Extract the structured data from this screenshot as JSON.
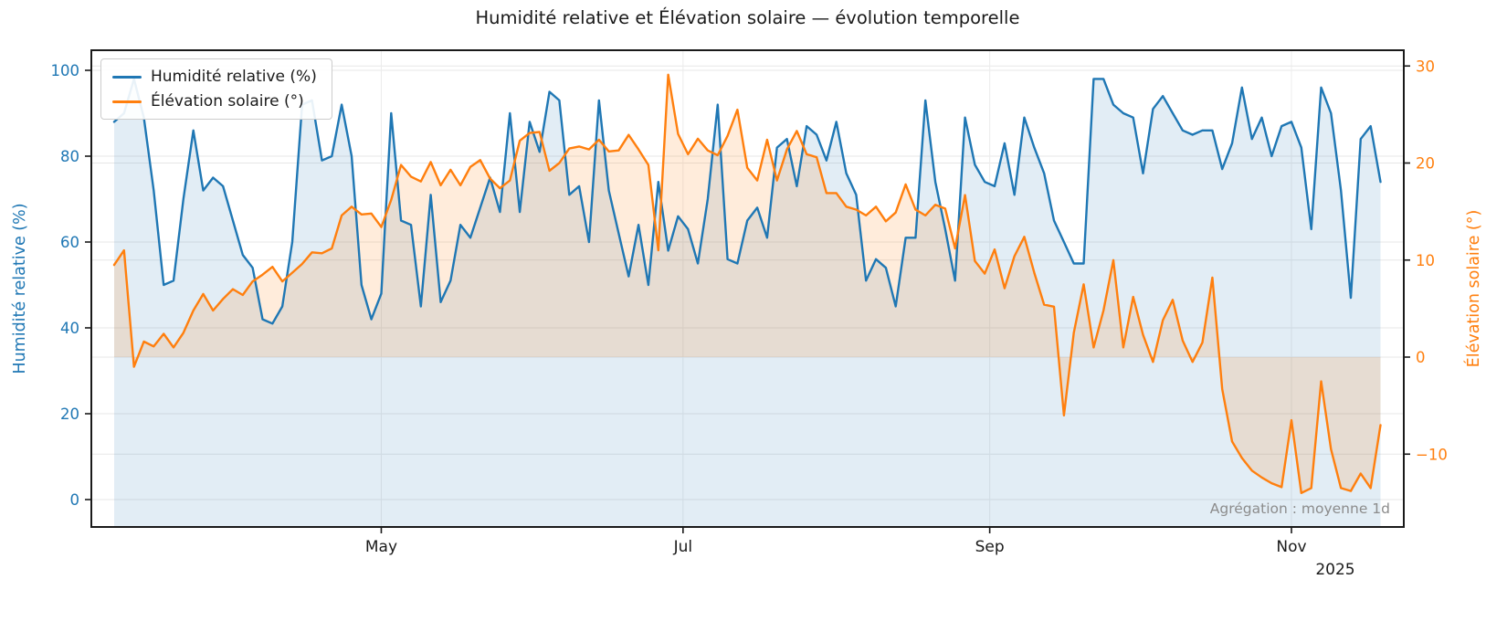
{
  "title": "Humidité relative et Élévation solaire — évolution temporelle",
  "annotation": "Agrégation : moyenne 1d",
  "colors": {
    "humidity": "#1f77b4",
    "elevation": "#ff7f0e",
    "grid": "#e7e7e7",
    "spine": "#1a1a1a",
    "annotation": "#8c8c8c"
  },
  "legend": {
    "items": [
      {
        "label": "Humidité relative (%)",
        "color": "#1f77b4"
      },
      {
        "label": "Élévation solaire (°)",
        "color": "#ff7f0e"
      }
    ]
  },
  "left_axis": {
    "label": "Humidité relative (%)",
    "color": "#1f77b4",
    "ticks": [
      0,
      20,
      40,
      60,
      80,
      100
    ]
  },
  "right_axis": {
    "label": "Élévation solaire (°)",
    "color": "#ff7f0e",
    "ticks": [
      -10,
      0,
      10,
      20,
      30
    ]
  },
  "x_axis": {
    "year_label": "2025",
    "ticks": [
      {
        "label": "May",
        "date": "2025-05-01"
      },
      {
        "label": "Jul",
        "date": "2025-07-01"
      },
      {
        "label": "Sep",
        "date": "2025-09-01"
      },
      {
        "label": "Nov",
        "date": "2025-11-01"
      }
    ]
  },
  "chart_data": {
    "type": "line",
    "title": "Humidité relative et Élévation solaire — évolution temporelle",
    "aggregation_note": "Agrégation : moyenne 1d",
    "grid": true,
    "legend_position": "upper left",
    "left_ylim": [
      -6.4,
      104.7
    ],
    "right_ylim": [
      -17.6,
      31.6
    ],
    "x_range": [
      "2025-03-08",
      "2025-11-19"
    ],
    "x": [
      "2025-03-08",
      "2025-03-10",
      "2025-03-12",
      "2025-03-14",
      "2025-03-16",
      "2025-03-18",
      "2025-03-20",
      "2025-03-22",
      "2025-03-24",
      "2025-03-26",
      "2025-03-28",
      "2025-03-30",
      "2025-04-01",
      "2025-04-03",
      "2025-04-05",
      "2025-04-07",
      "2025-04-09",
      "2025-04-11",
      "2025-04-13",
      "2025-04-15",
      "2025-04-17",
      "2025-04-19",
      "2025-04-21",
      "2025-04-23",
      "2025-04-25",
      "2025-04-27",
      "2025-04-29",
      "2025-05-01",
      "2025-05-03",
      "2025-05-05",
      "2025-05-07",
      "2025-05-09",
      "2025-05-11",
      "2025-05-13",
      "2025-05-15",
      "2025-05-17",
      "2025-05-19",
      "2025-05-21",
      "2025-05-23",
      "2025-05-25",
      "2025-05-27",
      "2025-05-29",
      "2025-05-31",
      "2025-06-02",
      "2025-06-04",
      "2025-06-06",
      "2025-06-08",
      "2025-06-10",
      "2025-06-12",
      "2025-06-14",
      "2025-06-16",
      "2025-06-18",
      "2025-06-20",
      "2025-06-22",
      "2025-06-24",
      "2025-06-26",
      "2025-06-28",
      "2025-06-30",
      "2025-07-02",
      "2025-07-04",
      "2025-07-06",
      "2025-07-08",
      "2025-07-10",
      "2025-07-12",
      "2025-07-14",
      "2025-07-16",
      "2025-07-18",
      "2025-07-20",
      "2025-07-22",
      "2025-07-24",
      "2025-07-26",
      "2025-07-28",
      "2025-07-30",
      "2025-08-01",
      "2025-08-03",
      "2025-08-05",
      "2025-08-07",
      "2025-08-09",
      "2025-08-11",
      "2025-08-13",
      "2025-08-15",
      "2025-08-17",
      "2025-08-19",
      "2025-08-21",
      "2025-08-23",
      "2025-08-25",
      "2025-08-27",
      "2025-08-29",
      "2025-08-31",
      "2025-09-02",
      "2025-09-04",
      "2025-09-06",
      "2025-09-08",
      "2025-09-10",
      "2025-09-12",
      "2025-09-14",
      "2025-09-16",
      "2025-09-18",
      "2025-09-20",
      "2025-09-22",
      "2025-09-24",
      "2025-09-26",
      "2025-09-28",
      "2025-09-30",
      "2025-10-02",
      "2025-10-04",
      "2025-10-06",
      "2025-10-08",
      "2025-10-10",
      "2025-10-12",
      "2025-10-14",
      "2025-10-16",
      "2025-10-18",
      "2025-10-20",
      "2025-10-22",
      "2025-10-24",
      "2025-10-26",
      "2025-10-28",
      "2025-10-30",
      "2025-11-01",
      "2025-11-03",
      "2025-11-05",
      "2025-11-07",
      "2025-11-09",
      "2025-11-11",
      "2025-11-13",
      "2025-11-15",
      "2025-11-17",
      "2025-11-19"
    ],
    "series": [
      {
        "name": "Humidité relative (%)",
        "axis": "left",
        "color": "#1f77b4",
        "fill_to": "bottom",
        "values": [
          88,
          90,
          98,
          89,
          72,
          50,
          51,
          70,
          86,
          72,
          75,
          73,
          65,
          57,
          54,
          42,
          41,
          45,
          60,
          92,
          93,
          79,
          80,
          92,
          80,
          50,
          42,
          48,
          90,
          65,
          64,
          45,
          71,
          46,
          51,
          64,
          61,
          68,
          75,
          67,
          90,
          67,
          88,
          81,
          95,
          93,
          71,
          73,
          60,
          93,
          72,
          62,
          52,
          64,
          50,
          74,
          58,
          66,
          63,
          55,
          70,
          92,
          56,
          55,
          65,
          68,
          61,
          82,
          84,
          73,
          87,
          85,
          79,
          88,
          76,
          71,
          51,
          56,
          54,
          45,
          61,
          61,
          93,
          74,
          63,
          51,
          89,
          78,
          74,
          73,
          83,
          71,
          89,
          82,
          76,
          65,
          60,
          55,
          55,
          98,
          98,
          92,
          90,
          89,
          76,
          91,
          94,
          90,
          86,
          85,
          86,
          86,
          77,
          83,
          96,
          84,
          89,
          80,
          87,
          88,
          82,
          63,
          96,
          90,
          72,
          47,
          84,
          87,
          74
        ]
      },
      {
        "name": "Élévation solaire (°)",
        "axis": "right",
        "color": "#ff7f0e",
        "fill_to": "zero",
        "values": [
          9.5,
          11.0,
          -1.0,
          1.6,
          1.1,
          2.4,
          1.0,
          2.5,
          4.8,
          6.5,
          4.8,
          6.0,
          7.0,
          6.4,
          7.8,
          8.5,
          9.3,
          7.8,
          8.7,
          9.6,
          10.8,
          10.7,
          11.2,
          14.6,
          15.5,
          14.7,
          14.8,
          13.4,
          16.2,
          19.8,
          18.6,
          18.1,
          20.1,
          17.7,
          19.3,
          17.7,
          19.6,
          20.3,
          18.4,
          17.4,
          18.2,
          22.3,
          23.1,
          23.2,
          19.2,
          20.0,
          21.5,
          21.7,
          21.4,
          22.4,
          21.2,
          21.3,
          22.9,
          21.4,
          19.8,
          11.0,
          29.1,
          23.0,
          20.9,
          22.5,
          21.3,
          20.8,
          22.8,
          25.5,
          19.5,
          18.2,
          22.4,
          18.2,
          21.4,
          23.3,
          20.9,
          20.6,
          16.9,
          16.9,
          15.5,
          15.2,
          14.6,
          15.5,
          14.0,
          14.9,
          17.8,
          15.2,
          14.6,
          15.7,
          15.3,
          11.2,
          16.7,
          9.9,
          8.6,
          11.1,
          7.1,
          10.4,
          12.4,
          8.7,
          5.4,
          5.2,
          -6.0,
          2.5,
          7.5,
          1.0,
          4.8,
          10.0,
          1.0,
          6.2,
          2.3,
          -0.5,
          3.8,
          5.9,
          1.7,
          -0.5,
          1.5,
          8.2,
          -3.3,
          -8.7,
          -10.4,
          -11.7,
          -12.4,
          -13.0,
          -13.4,
          -6.5,
          -14.0,
          -13.5,
          -2.5,
          -9.5,
          -13.5,
          -13.8,
          -12.0,
          -13.5,
          -7.0
        ]
      }
    ]
  }
}
